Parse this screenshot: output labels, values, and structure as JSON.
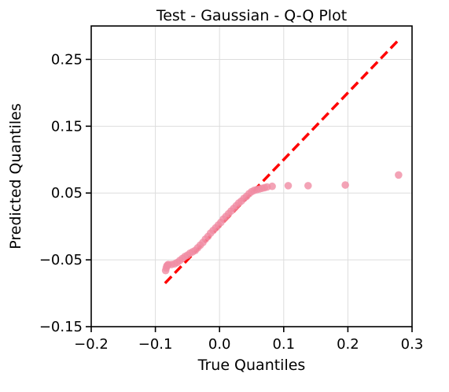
{
  "chart_data": {
    "type": "scatter",
    "title": "Test - Gaussian - Q-Q Plot",
    "xlabel": "True Quantiles",
    "ylabel": "Predicted Quantiles",
    "xlim": [
      -0.2,
      0.3
    ],
    "ylim": [
      -0.15,
      0.3
    ],
    "x_ticks": [
      -0.2,
      -0.1,
      0.0,
      0.1,
      0.2,
      0.3
    ],
    "x_tick_labels": [
      "−0.2",
      "−0.1",
      "0.0",
      "0.1",
      "0.2",
      "0.3"
    ],
    "y_ticks": [
      -0.15,
      -0.05,
      0.05,
      0.15,
      0.25
    ],
    "y_tick_labels": [
      "−0.15",
      "−0.05",
      "0.05",
      "0.15",
      "0.25"
    ],
    "grid": true,
    "point_color": "#f08ca4",
    "line_color": "#ff0000",
    "reference_line": {
      "style": "dashed",
      "x": [
        -0.085,
        0.28
      ],
      "y": [
        -0.085,
        0.28
      ]
    },
    "series": [
      {
        "x": [
          -0.084,
          -0.083,
          -0.082,
          -0.081,
          -0.08,
          -0.075,
          -0.07,
          -0.066,
          -0.062,
          -0.058,
          -0.054,
          -0.05,
          -0.046,
          -0.042,
          -0.038,
          -0.034,
          -0.03,
          -0.026,
          -0.022,
          -0.018,
          -0.014,
          -0.01,
          -0.006,
          -0.002,
          0.002,
          0.006,
          0.01,
          0.014,
          0.018,
          0.022,
          0.026,
          0.03,
          0.034,
          0.038,
          0.042,
          0.046,
          0.05,
          0.054,
          0.058,
          0.062,
          0.066,
          0.07,
          0.074,
          0.082,
          0.107,
          0.138,
          0.196,
          0.279
        ],
        "y": [
          -0.066,
          -0.062,
          -0.059,
          -0.058,
          -0.057,
          -0.057,
          -0.056,
          -0.054,
          -0.051,
          -0.048,
          -0.045,
          -0.043,
          -0.04,
          -0.038,
          -0.036,
          -0.032,
          -0.028,
          -0.024,
          -0.019,
          -0.015,
          -0.01,
          -0.006,
          -0.002,
          0.002,
          0.006,
          0.011,
          0.015,
          0.019,
          0.023,
          0.027,
          0.031,
          0.035,
          0.038,
          0.042,
          0.045,
          0.049,
          0.052,
          0.054,
          0.055,
          0.056,
          0.057,
          0.058,
          0.059,
          0.06,
          0.061,
          0.061,
          0.062,
          0.077
        ]
      }
    ]
  }
}
